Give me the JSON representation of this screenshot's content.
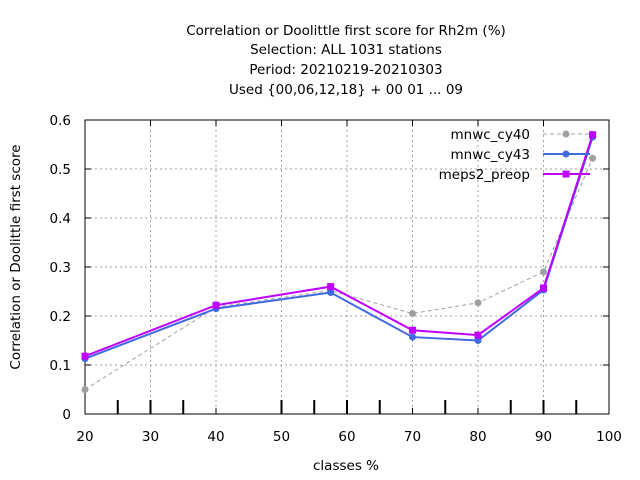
{
  "chart_data": {
    "type": "line",
    "title_lines": [
      "Correlation or Doolittle first score  for Rh2m (%)",
      "Selection: ALL    1031 stations",
      "Period: 20210219-20210303",
      "Used {00,06,12,18} + 00 01 ... 09"
    ],
    "xlabel": "classes %",
    "ylabel": "Correlation or Doolittle first score",
    "xlim": [
      20,
      100
    ],
    "ylim": [
      0,
      0.6
    ],
    "x_ticks": [
      20,
      30,
      40,
      50,
      60,
      70,
      80,
      90,
      100
    ],
    "y_ticks": [
      0,
      0.1,
      0.2,
      0.3,
      0.4,
      0.5,
      0.6
    ],
    "y_tick_labels": [
      "0",
      "0.1",
      "0.2",
      "0.3",
      "0.4",
      "0.5",
      "0.6"
    ],
    "grid": true,
    "legend_position": "top-right",
    "class_markers": [
      25,
      30,
      35,
      50,
      55,
      60,
      65,
      75,
      85,
      90,
      95
    ],
    "x": [
      20,
      40,
      57.5,
      70,
      80,
      90,
      97.5
    ],
    "series": [
      {
        "name": "mnwc_cy40",
        "color": "#a0a0a0",
        "dash": true,
        "marker": "circle",
        "values": [
          0.05,
          0.218,
          0.252,
          0.205,
          0.227,
          0.29,
          0.522
        ]
      },
      {
        "name": "mnwc_cy43",
        "color": "#4169e1",
        "dash": false,
        "marker": "circle",
        "values": [
          0.113,
          0.215,
          0.248,
          0.157,
          0.15,
          0.253,
          0.565
        ]
      },
      {
        "name": "meps2_preop",
        "color": "#bf00ff",
        "dash": false,
        "marker": "square",
        "values": [
          0.118,
          0.222,
          0.26,
          0.171,
          0.161,
          0.257,
          0.57
        ]
      }
    ]
  }
}
